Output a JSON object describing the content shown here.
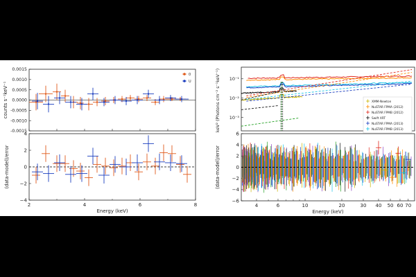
{
  "chart_data": [
    {
      "type": "scatter",
      "panel": "left-top",
      "ylabel": "counts s⁻¹keV⁻¹",
      "xlim": [
        2,
        8
      ],
      "ylim": [
        -0.0015,
        0.0015
      ],
      "yticks": [
        "0.0015",
        "0.0010",
        "0.0005",
        "0.0000",
        "-0.0005",
        "-0.0010",
        "-0.0015"
      ],
      "legend_position": "top-right",
      "series": [
        {
          "name": "0",
          "color": "#e05a1a",
          "x": [
            2.25,
            2.6,
            3.0,
            3.3,
            3.6,
            3.85,
            4.15,
            4.45,
            4.75,
            5.05,
            5.35,
            5.65,
            5.95,
            6.25,
            6.55,
            6.85,
            7.15,
            7.45
          ],
          "xerr": [
            0.25,
            0.25,
            0.15,
            0.15,
            0.15,
            0.12,
            0.15,
            0.15,
            0.15,
            0.15,
            0.15,
            0.15,
            0.15,
            0.15,
            0.15,
            0.15,
            0.15,
            0.2
          ],
          "y": [
            -0.0001,
            0.0003,
            0.0004,
            0.0002,
            -0.0001,
            -0.00015,
            -0.0002,
            -0.0001,
            -5e-05,
            0.0,
            5e-05,
            0.0001,
            5e-05,
            0.0001,
            -0.0001,
            5e-05,
            5e-05,
            5e-05
          ],
          "yerr": [
            0.0004,
            0.0004,
            0.0004,
            0.0003,
            0.0003,
            0.0003,
            0.0003,
            0.0002,
            0.0002,
            0.00015,
            0.00015,
            0.00015,
            0.00015,
            0.00015,
            0.00015,
            0.00015,
            0.0001,
            0.0001
          ]
        },
        {
          "name": "U",
          "color": "#1a3dbf",
          "x": [
            2.3,
            2.7,
            3.1,
            3.5,
            3.9,
            4.3,
            4.7,
            5.1,
            5.5,
            5.9,
            6.3,
            6.7,
            7.1,
            7.5
          ],
          "xerr": [
            0.2,
            0.2,
            0.2,
            0.2,
            0.2,
            0.2,
            0.2,
            0.2,
            0.2,
            0.2,
            0.2,
            0.2,
            0.2,
            0.25
          ],
          "y": [
            -5e-05,
            -0.0002,
            0.0001,
            -0.0001,
            -0.0002,
            0.0003,
            -0.0001,
            0.0,
            -5e-05,
            0.0,
            0.0003,
            0.0,
            0.0001,
            5e-05
          ],
          "yerr": [
            0.0004,
            0.0004,
            0.0003,
            0.0003,
            0.0003,
            0.0003,
            0.0002,
            0.0002,
            0.0002,
            0.0002,
            0.0002,
            0.0002,
            0.00015,
            0.00015
          ]
        }
      ]
    },
    {
      "type": "scatter",
      "panel": "left-bottom",
      "xlabel": "Energy (keV)",
      "ylabel": "(data-model)/error",
      "xlim": [
        2,
        8
      ],
      "ylim": [
        -4,
        4
      ],
      "xticks": [
        "2",
        "4",
        "6",
        "8"
      ],
      "yticks": [
        "4",
        "2",
        "0",
        "−2",
        "−4"
      ],
      "reference_line": 0,
      "series": [
        {
          "name": "0",
          "color": "#e05a1a",
          "x": [
            2.25,
            2.6,
            3.0,
            3.3,
            3.6,
            3.85,
            4.15,
            4.45,
            4.75,
            5.05,
            5.35,
            5.65,
            5.95,
            6.25,
            6.55,
            6.85,
            7.15,
            7.45,
            7.7
          ],
          "y": [
            -1.0,
            1.6,
            0.4,
            0.4,
            -0.2,
            -0.5,
            -1.3,
            0.3,
            0.1,
            -0.1,
            0.1,
            0.5,
            -0.6,
            0.6,
            0.1,
            1.7,
            1.6,
            0.3,
            -0.9
          ]
        },
        {
          "name": "U",
          "color": "#1a3dbf",
          "x": [
            2.3,
            2.7,
            3.1,
            3.5,
            3.9,
            4.3,
            4.7,
            5.1,
            5.5,
            5.9,
            6.3,
            6.7,
            7.1,
            7.5
          ],
          "y": [
            -0.6,
            -0.8,
            0.5,
            -0.9,
            -0.8,
            1.3,
            -1.0,
            0.3,
            0.0,
            0.5,
            2.8,
            0.6,
            0.5,
            0.4
          ]
        }
      ]
    },
    {
      "type": "line",
      "panel": "right-top",
      "scale": "log-log",
      "ylabel": "keV² (Photons cm⁻² s⁻¹keV⁻¹)",
      "xlim": [
        3,
        79
      ],
      "ylim": [
        0.0002,
        0.4
      ],
      "yticks": [
        "10⁻¹",
        "10⁻²",
        "10⁻³"
      ],
      "legend_position": "bottom-right",
      "series": [
        {
          "name": "XMM-Newton",
          "color": "#c9b400"
        },
        {
          "name": "NuSTAR FPMA (2012)",
          "color": "#ff8c00"
        },
        {
          "name": "NuSTAR FPMB (2012)",
          "color": "#e0261a"
        },
        {
          "name": "Swift XRT",
          "color": "#111111"
        },
        {
          "name": "NuSTAR FPMA (2013)",
          "color": "#1a3dbf"
        },
        {
          "name": "NuSTAR FPMB (2013)",
          "color": "#19c3e6"
        }
      ]
    },
    {
      "type": "line",
      "panel": "right-bottom",
      "scale": "log-x",
      "xlabel": "Energy (keV)",
      "ylabel": "(data-model)/error",
      "xlim": [
        3,
        79
      ],
      "ylim": [
        -6,
        6
      ],
      "xticks": [
        "4",
        "6",
        "10",
        "20",
        "30",
        "40",
        "50",
        "60",
        "70"
      ],
      "yticks": [
        "6",
        "4",
        "2",
        "0",
        "−2",
        "−4",
        "−6"
      ],
      "reference_line": 0
    }
  ]
}
